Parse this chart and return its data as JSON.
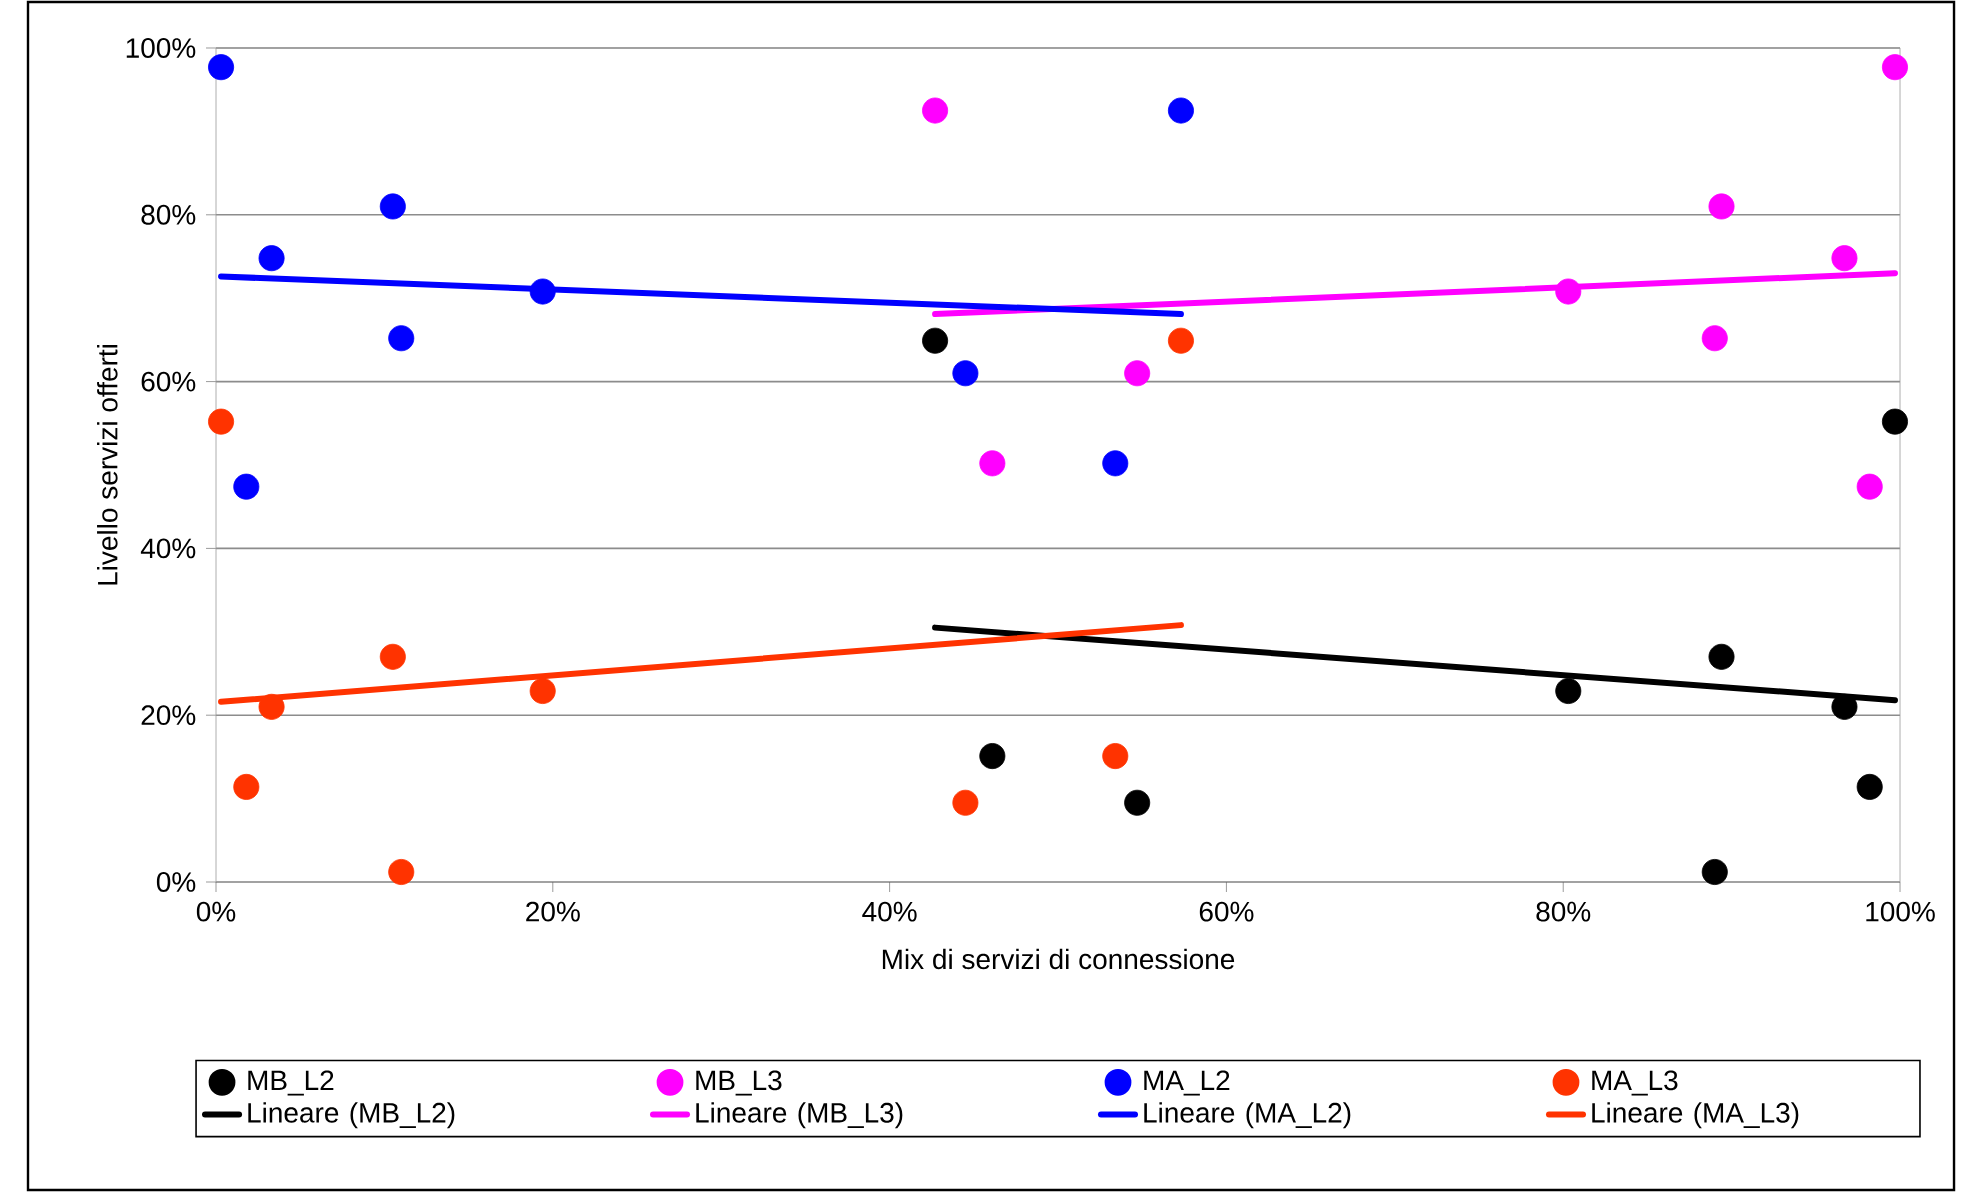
{
  "chart_data": {
    "type": "scatter",
    "xlabel": "Mix di servizi di connessione",
    "ylabel": "Livello servizi offerti",
    "xlim": [
      0,
      100
    ],
    "ylim": [
      0,
      100
    ],
    "xticks": [
      {
        "value": 0,
        "label": "0%"
      },
      {
        "value": 20,
        "label": "20%"
      },
      {
        "value": 40,
        "label": "40%"
      },
      {
        "value": 60,
        "label": "60%"
      },
      {
        "value": 80,
        "label": "80%"
      },
      {
        "value": 100,
        "label": "100%"
      }
    ],
    "yticks": [
      {
        "value": 0,
        "label": "0%"
      },
      {
        "value": 20,
        "label": "20%"
      },
      {
        "value": 40,
        "label": "40%"
      },
      {
        "value": 60,
        "label": "60%"
      },
      {
        "value": 80,
        "label": "80%"
      },
      {
        "value": 100,
        "label": "100%"
      }
    ],
    "grid": "y",
    "legend": "bottom",
    "marker": "circle",
    "series": [
      {
        "name": "MB_L2",
        "color": "#000000",
        "x": [
          42.7,
          46.1,
          54.7,
          99.7,
          89.4,
          80.3,
          96.7,
          98.2,
          89.0
        ],
        "values": [
          64.9,
          15.1,
          9.5,
          55.2,
          27,
          22.9,
          21,
          11.4,
          1.2
        ]
      },
      {
        "name": "MB_L3",
        "color": "#ff00ff",
        "x": [
          42.7,
          54.7,
          46.1,
          99.7,
          89.4,
          96.7,
          80.3,
          89.0,
          98.2
        ],
        "values": [
          92.5,
          61,
          50.2,
          97.7,
          81,
          74.8,
          70.8,
          65.2,
          47.4
        ]
      },
      {
        "name": "MA_L2",
        "color": "#0000ff",
        "x": [
          0.3,
          10.5,
          3.3,
          19.4,
          11.0,
          1.8,
          57.3,
          44.5,
          53.4
        ],
        "values": [
          97.7,
          81,
          74.8,
          70.8,
          65.2,
          47.4,
          92.5,
          61,
          50.2
        ]
      },
      {
        "name": "MA_L3",
        "color": "#ff3300",
        "x": [
          0.3,
          10.5,
          3.3,
          19.4,
          1.8,
          11.0,
          57.3,
          44.5,
          53.4
        ],
        "values": [
          55.2,
          27,
          21,
          22.9,
          11.4,
          1.2,
          64.9,
          9.5,
          15.1
        ]
      },
      {
        "name": "Lineare (MB_L2)",
        "type": "line",
        "marker": "none",
        "color": "#000000",
        "x": [
          42.7,
          99.7
        ],
        "values": [
          30.5,
          21.8
        ]
      },
      {
        "name": "Lineare (MB_L3)",
        "type": "line",
        "marker": "none",
        "color": "#ff00ff",
        "x": [
          42.7,
          99.7
        ],
        "values": [
          68.1,
          73.0
        ]
      },
      {
        "name": "Lineare (MA_L2)",
        "type": "line",
        "marker": "none",
        "color": "#0000ff",
        "x": [
          0.3,
          57.3
        ],
        "values": [
          72.6,
          68.1
        ]
      },
      {
        "name": "Lineare (MA_L3)",
        "type": "line",
        "marker": "none",
        "color": "#ff3300",
        "x": [
          0.3,
          57.3
        ],
        "values": [
          21.6,
          30.8
        ]
      }
    ]
  }
}
